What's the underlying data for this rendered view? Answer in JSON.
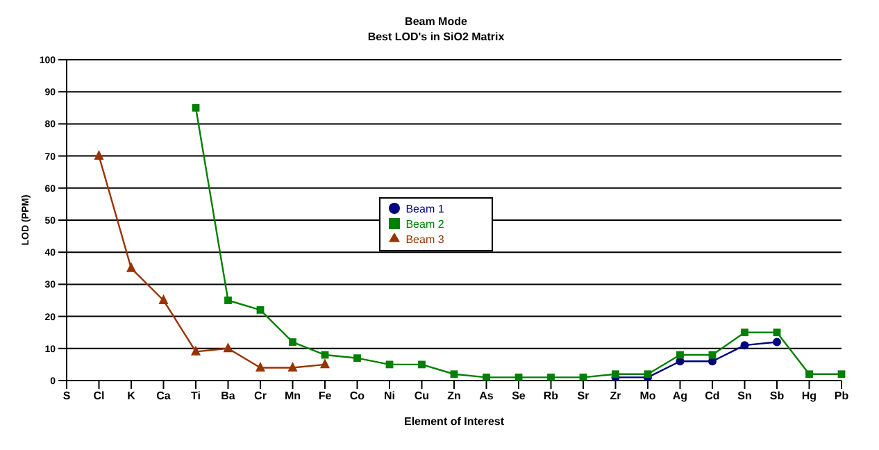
{
  "chart_data": {
    "type": "line",
    "title": "Beam Mode",
    "subtitle": "Best LOD's in SiO2 Matrix",
    "xlabel": "Element of Interest",
    "ylabel": "LOD (PPM)",
    "categories": [
      "S",
      "Cl",
      "K",
      "Ca",
      "Ti",
      "Ba",
      "Cr",
      "Mn",
      "Fe",
      "Co",
      "Ni",
      "Cu",
      "Zn",
      "As",
      "Se",
      "Rb",
      "Sr",
      "Zr",
      "Mo",
      "Ag",
      "Cd",
      "Sn",
      "Sb",
      "Hg",
      "Pb"
    ],
    "series": [
      {
        "name": "Beam 1",
        "color": "#000080",
        "marker": "circle",
        "values": [
          null,
          null,
          null,
          null,
          null,
          null,
          null,
          null,
          null,
          null,
          null,
          null,
          null,
          null,
          null,
          null,
          null,
          1,
          1,
          6,
          6,
          11,
          12,
          null,
          null
        ]
      },
      {
        "name": "Beam 2",
        "color": "#008000",
        "marker": "square",
        "values": [
          null,
          null,
          null,
          null,
          85,
          25,
          22,
          12,
          8,
          7,
          5,
          5,
          2,
          1,
          1,
          1,
          1,
          2,
          2,
          8,
          8,
          15,
          15,
          2,
          2
        ]
      },
      {
        "name": "Beam 3",
        "color": "#993300",
        "marker": "triangle",
        "values": [
          null,
          70,
          35,
          25,
          9,
          10,
          4,
          4,
          5,
          null,
          null,
          null,
          null,
          null,
          null,
          null,
          null,
          null,
          null,
          null,
          null,
          null,
          null,
          null,
          null
        ]
      }
    ],
    "ylim": [
      0,
      100
    ],
    "yticks": [
      0,
      10,
      20,
      30,
      40,
      50,
      60,
      70,
      80,
      90,
      100
    ],
    "grid": "y",
    "legend": "center"
  }
}
